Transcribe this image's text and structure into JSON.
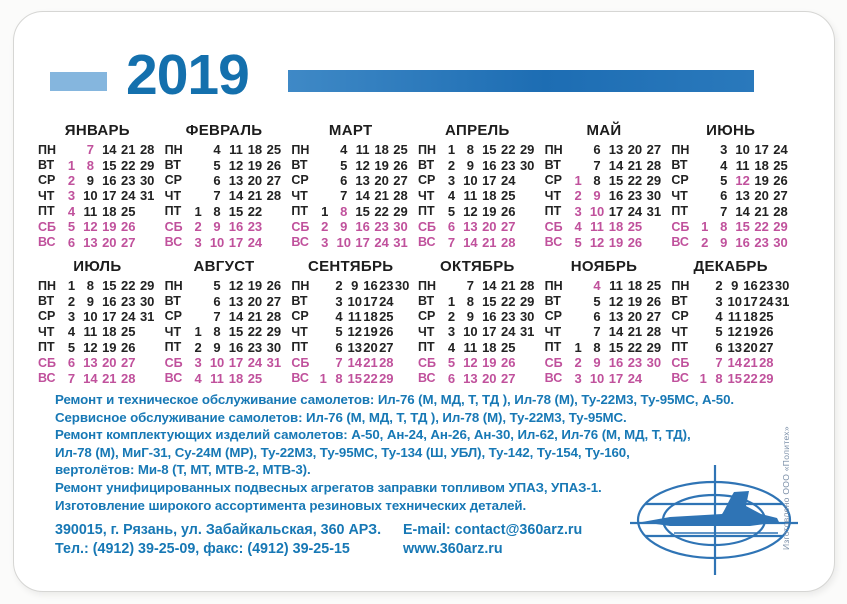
{
  "year": "2019",
  "weekday_labels": [
    "ПН",
    "ВТ",
    "СР",
    "ЧТ",
    "ПТ",
    "СБ",
    "ВС"
  ],
  "colors": {
    "year_blue": "#1470ad",
    "bar_light_blue": "#85b6de",
    "bar_dark_blue": "#2a79bc",
    "services_blue": "#1778b5",
    "holiday_pink": "#c0519c",
    "day_black": "#222222"
  },
  "months": [
    {
      "name": "ЯНВАРЬ",
      "cols": 5,
      "holidays": [
        1,
        2,
        3,
        4,
        7,
        8
      ],
      "rows": [
        [
          "",
          "7",
          "14",
          "21",
          "28"
        ],
        [
          "1",
          "8",
          "15",
          "22",
          "29"
        ],
        [
          "2",
          "9",
          "16",
          "23",
          "30"
        ],
        [
          "3",
          "10",
          "17",
          "24",
          "31"
        ],
        [
          "4",
          "11",
          "18",
          "25",
          ""
        ],
        [
          "5",
          "12",
          "19",
          "26",
          ""
        ],
        [
          "6",
          "13",
          "20",
          "27",
          ""
        ]
      ]
    },
    {
      "name": "ФЕВРАЛЬ",
      "cols": 5,
      "holidays": [],
      "rows": [
        [
          "",
          "4",
          "11",
          "18",
          "25"
        ],
        [
          "",
          "5",
          "12",
          "19",
          "26"
        ],
        [
          "",
          "6",
          "13",
          "20",
          "27"
        ],
        [
          "",
          "7",
          "14",
          "21",
          "28"
        ],
        [
          "1",
          "8",
          "15",
          "22",
          ""
        ],
        [
          "2",
          "9",
          "16",
          "23",
          ""
        ],
        [
          "3",
          "10",
          "17",
          "24",
          ""
        ]
      ]
    },
    {
      "name": "МАРТ",
      "cols": 5,
      "holidays": [
        8
      ],
      "rows": [
        [
          "",
          "4",
          "11",
          "18",
          "25"
        ],
        [
          "",
          "5",
          "12",
          "19",
          "26"
        ],
        [
          "",
          "6",
          "13",
          "20",
          "27"
        ],
        [
          "",
          "7",
          "14",
          "21",
          "28"
        ],
        [
          "1",
          "8",
          "15",
          "22",
          "29"
        ],
        [
          "2",
          "9",
          "16",
          "23",
          "30"
        ],
        [
          "3",
          "10",
          "17",
          "24",
          "31"
        ]
      ]
    },
    {
      "name": "АПРЕЛЬ",
      "cols": 5,
      "holidays": [],
      "rows": [
        [
          "1",
          "8",
          "15",
          "22",
          "29"
        ],
        [
          "2",
          "9",
          "16",
          "23",
          "30"
        ],
        [
          "3",
          "10",
          "17",
          "24",
          ""
        ],
        [
          "4",
          "11",
          "18",
          "25",
          ""
        ],
        [
          "5",
          "12",
          "19",
          "26",
          ""
        ],
        [
          "6",
          "13",
          "20",
          "27",
          ""
        ],
        [
          "7",
          "14",
          "21",
          "28",
          ""
        ]
      ]
    },
    {
      "name": "МАЙ",
      "cols": 5,
      "holidays": [
        1,
        2,
        3,
        9,
        10
      ],
      "rows": [
        [
          "",
          "6",
          "13",
          "20",
          "27"
        ],
        [
          "",
          "7",
          "14",
          "21",
          "28"
        ],
        [
          "1",
          "8",
          "15",
          "22",
          "29"
        ],
        [
          "2",
          "9",
          "16",
          "23",
          "30"
        ],
        [
          "3",
          "10",
          "17",
          "24",
          "31"
        ],
        [
          "4",
          "11",
          "18",
          "25",
          ""
        ],
        [
          "5",
          "12",
          "19",
          "26",
          ""
        ]
      ]
    },
    {
      "name": "ИЮНЬ",
      "cols": 5,
      "holidays": [
        12
      ],
      "rows": [
        [
          "",
          "3",
          "10",
          "17",
          "24"
        ],
        [
          "",
          "4",
          "11",
          "18",
          "25"
        ],
        [
          "",
          "5",
          "12",
          "19",
          "26"
        ],
        [
          "",
          "6",
          "13",
          "20",
          "27"
        ],
        [
          "",
          "7",
          "14",
          "21",
          "28"
        ],
        [
          "1",
          "8",
          "15",
          "22",
          "29"
        ],
        [
          "2",
          "9",
          "16",
          "23",
          "30"
        ]
      ]
    },
    {
      "name": "ИЮЛЬ",
      "cols": 5,
      "holidays": [],
      "rows": [
        [
          "1",
          "8",
          "15",
          "22",
          "29"
        ],
        [
          "2",
          "9",
          "16",
          "23",
          "30"
        ],
        [
          "3",
          "10",
          "17",
          "24",
          "31"
        ],
        [
          "4",
          "11",
          "18",
          "25",
          ""
        ],
        [
          "5",
          "12",
          "19",
          "26",
          ""
        ],
        [
          "6",
          "13",
          "20",
          "27",
          ""
        ],
        [
          "7",
          "14",
          "21",
          "28",
          ""
        ]
      ]
    },
    {
      "name": "АВГУСТ",
      "cols": 5,
      "holidays": [],
      "rows": [
        [
          "",
          "5",
          "12",
          "19",
          "26"
        ],
        [
          "",
          "6",
          "13",
          "20",
          "27"
        ],
        [
          "",
          "7",
          "14",
          "21",
          "28"
        ],
        [
          "1",
          "8",
          "15",
          "22",
          "29"
        ],
        [
          "2",
          "9",
          "16",
          "23",
          "30"
        ],
        [
          "3",
          "10",
          "17",
          "24",
          "31"
        ],
        [
          "4",
          "11",
          "18",
          "25",
          ""
        ]
      ]
    },
    {
      "name": "СЕНТЯБРЬ",
      "cols": 6,
      "holidays": [],
      "rows": [
        [
          "",
          "2",
          "9",
          "16",
          "23",
          "30"
        ],
        [
          "",
          "3",
          "10",
          "17",
          "24",
          ""
        ],
        [
          "",
          "4",
          "11",
          "18",
          "25",
          ""
        ],
        [
          "",
          "5",
          "12",
          "19",
          "26",
          ""
        ],
        [
          "",
          "6",
          "13",
          "20",
          "27",
          ""
        ],
        [
          "",
          "7",
          "14",
          "21",
          "28",
          ""
        ],
        [
          "1",
          "8",
          "15",
          "22",
          "29",
          ""
        ]
      ]
    },
    {
      "name": "ОКТЯБРЬ",
      "cols": 5,
      "holidays": [],
      "rows": [
        [
          "",
          "7",
          "14",
          "21",
          "28"
        ],
        [
          "1",
          "8",
          "15",
          "22",
          "29"
        ],
        [
          "2",
          "9",
          "16",
          "23",
          "30"
        ],
        [
          "3",
          "10",
          "17",
          "24",
          "31"
        ],
        [
          "4",
          "11",
          "18",
          "25",
          ""
        ],
        [
          "5",
          "12",
          "19",
          "26",
          ""
        ],
        [
          "6",
          "13",
          "20",
          "27",
          ""
        ]
      ]
    },
    {
      "name": "НОЯБРЬ",
      "cols": 5,
      "holidays": [
        4
      ],
      "rows": [
        [
          "",
          "4",
          "11",
          "18",
          "25"
        ],
        [
          "",
          "5",
          "12",
          "19",
          "26"
        ],
        [
          "",
          "6",
          "13",
          "20",
          "27"
        ],
        [
          "",
          "7",
          "14",
          "21",
          "28"
        ],
        [
          "1",
          "8",
          "15",
          "22",
          "29"
        ],
        [
          "2",
          "9",
          "16",
          "23",
          "30"
        ],
        [
          "3",
          "10",
          "17",
          "24",
          ""
        ]
      ]
    },
    {
      "name": "ДЕКАБРЬ",
      "cols": 6,
      "holidays": [],
      "rows": [
        [
          "",
          "2",
          "9",
          "16",
          "23",
          "30"
        ],
        [
          "",
          "3",
          "10",
          "17",
          "24",
          "31"
        ],
        [
          "",
          "4",
          "11",
          "18",
          "25",
          ""
        ],
        [
          "",
          "5",
          "12",
          "19",
          "26",
          ""
        ],
        [
          "",
          "6",
          "13",
          "20",
          "27",
          ""
        ],
        [
          "",
          "7",
          "14",
          "21",
          "28",
          ""
        ],
        [
          "1",
          "8",
          "15",
          "22",
          "29",
          ""
        ]
      ]
    }
  ],
  "services": [
    "Ремонт и техническое обслуживание самолетов: Ил-76 (М, МД, Т, ТД ), Ил-78 (М), Ту-22М3, Ту-95МС, А-50.",
    "Сервисное обслуживание самолетов:  Ил-76 (М, МД, Т, ТД ), Ил-78 (М), Ту-22М3, Ту-95МС.",
    "Ремонт комплектующих изделий самолетов: А-50, Ан-24, Ан-26, Ан-30, Ил-62, Ил-76 (М, МД, Т, ТД),",
    "Ил-78 (М), МиГ-31, Су-24М (МР), Ту-22М3, Ту-95МС, Ту-134 (Ш, УБЛ), Ту-142, Ту-154, Ту-160,",
    "вертолётов: Ми-8 (Т, МТ, МТВ-2, МТВ-3).",
    "Ремонт унифицированных подвесных агрегатов заправки топливом УПАЗ, УПАЗ-1.",
    "Изготовление широкого ассортимента резиновых технических деталей."
  ],
  "contacts": {
    "address": "390015, г. Рязань, ул. Забайкальская, 360 АРЗ.",
    "phone": "Тел.: (4912) 39-25-09, факс: (4912) 39-25-15",
    "email": "E-mail: contact@360arz.ru",
    "website": "www.360arz.ru"
  },
  "manufacturer_note": "Изготовлено ООО «Политех»"
}
